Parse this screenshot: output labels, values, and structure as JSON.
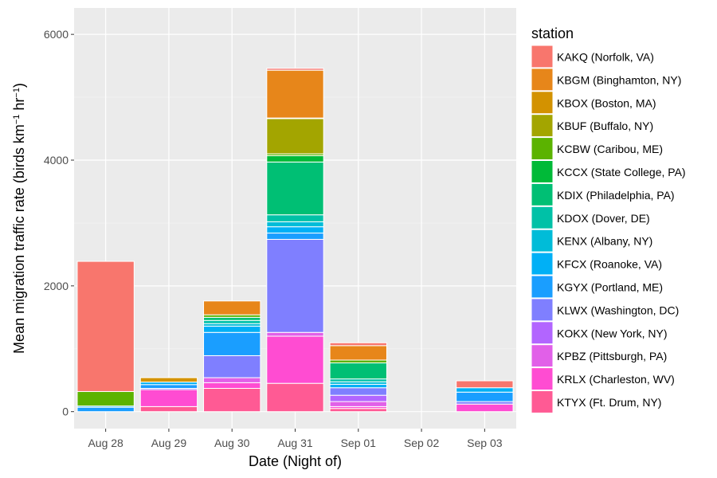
{
  "chart_data": {
    "type": "bar",
    "stacked": true,
    "title": "",
    "xlabel": "Date (Night of)",
    "ylabel": "Mean migration traffic rate (birds km",
    "ylabel_sup1": "−1",
    "ylabel_mid": " hr",
    "ylabel_sup2": "−1",
    "ylabel_end": ")",
    "ylim": [
      -270,
      6420
    ],
    "yticks": [
      0,
      2000,
      4000,
      6000
    ],
    "ytick_labels": [
      "0",
      "2000",
      "4000",
      "6000"
    ],
    "categories": [
      "Aug 28",
      "Aug 29",
      "Aug 30",
      "Aug 31",
      "Sep 01",
      "Sep 02",
      "Sep 03"
    ],
    "legend_title": "station",
    "legend_position": "right",
    "series": [
      {
        "name": "KAKQ (Norfolk, VA)",
        "color": "#F8766D",
        "values": [
          2070,
          0,
          0,
          30,
          45,
          0,
          110
        ]
      },
      {
        "name": "KBGM (Binghamton, NY)",
        "color": "#E7861A",
        "values": [
          0,
          0,
          220,
          760,
          230,
          0,
          0
        ]
      },
      {
        "name": "KBOX (Boston, MA)",
        "color": "#D39200",
        "values": [
          0,
          70,
          0,
          10,
          0,
          0,
          0
        ]
      },
      {
        "name": "KBUF (Buffalo, NY)",
        "color": "#A3A500",
        "values": [
          0,
          0,
          0,
          560,
          0,
          0,
          0
        ]
      },
      {
        "name": "KCBW (Caribou, ME)",
        "color": "#5BB300",
        "values": [
          230,
          0,
          40,
          30,
          45,
          0,
          0
        ]
      },
      {
        "name": "KCCX (State College, PA)",
        "color": "#00BA38",
        "values": [
          0,
          0,
          0,
          100,
          0,
          0,
          0
        ]
      },
      {
        "name": "KDIX (Philadelphia, PA)",
        "color": "#00BF74",
        "values": [
          0,
          0,
          50,
          840,
          255,
          0,
          0
        ]
      },
      {
        "name": "KDOX (Dover, DE)",
        "color": "#00C1A7",
        "values": [
          0,
          0,
          50,
          110,
          45,
          0,
          0
        ]
      },
      {
        "name": "KENX (Albany, NY)",
        "color": "#00BCD8",
        "values": [
          0,
          0,
          40,
          80,
          40,
          0,
          0
        ]
      },
      {
        "name": "KFCX (Roanoke, VA)",
        "color": "#00B0F6",
        "values": [
          20,
          40,
          100,
          100,
          55,
          0,
          70
        ]
      },
      {
        "name": "KGYX (Portland, ME)",
        "color": "#1A9EFF",
        "values": [
          70,
          60,
          370,
          100,
          0,
          0,
          150
        ]
      },
      {
        "name": "KLWX (Washington, DC)",
        "color": "#7F7FFF",
        "values": [
          0,
          20,
          350,
          1480,
          120,
          0,
          40
        ]
      },
      {
        "name": "KOKX (New York, NY)",
        "color": "#B265FF",
        "values": [
          0,
          0,
          0,
          0,
          100,
          0,
          0
        ]
      },
      {
        "name": "KPBZ (Pittsburgh, PA)",
        "color": "#E160E8",
        "values": [
          0,
          0,
          80,
          60,
          80,
          0,
          0
        ]
      },
      {
        "name": "KRLX (Charleston, WV)",
        "color": "#FF4CD2",
        "values": [
          0,
          270,
          90,
          750,
          30,
          0,
          120
        ]
      },
      {
        "name": "KTYX (Ft. Drum, NY)",
        "color": "#FF5A94",
        "values": [
          0,
          80,
          370,
          450,
          50,
          0,
          0
        ]
      }
    ]
  }
}
